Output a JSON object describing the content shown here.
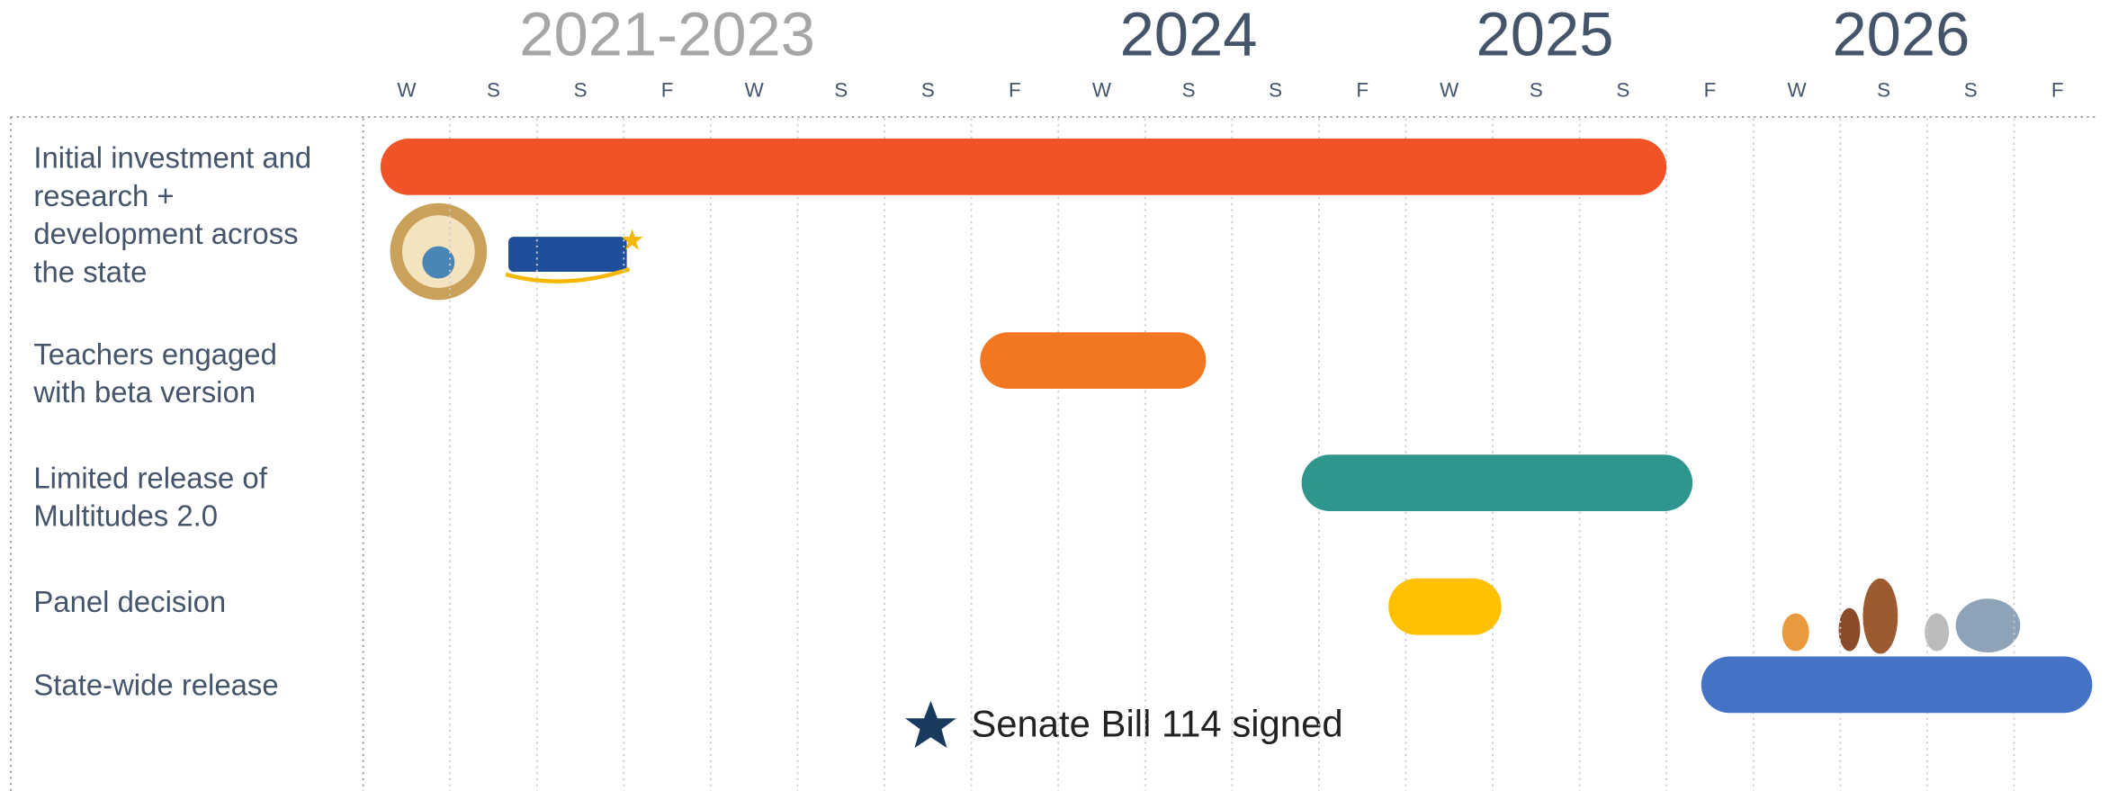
{
  "chart_data": {
    "type": "gantt",
    "periods": [
      {
        "label": "2021-2023",
        "start": -0.5,
        "end": 6.5,
        "color": "#a6a6a6"
      },
      {
        "label": "2024",
        "start": 8.3,
        "end": 9.7,
        "color": "#44546a"
      },
      {
        "label": "2025",
        "start": 12.4,
        "end": 13.8,
        "color": "#44546a"
      },
      {
        "label": "2026",
        "start": 16.5,
        "end": 17.9,
        "color": "#44546a"
      }
    ],
    "xlim": [
      -0.5,
      19.5
    ],
    "xticks": [
      {
        "value": 0,
        "label": "W"
      },
      {
        "value": 1,
        "label": "S"
      },
      {
        "value": 2,
        "label": "S"
      },
      {
        "value": 3,
        "label": "F"
      },
      {
        "value": 4,
        "label": "W"
      },
      {
        "value": 5,
        "label": "S"
      },
      {
        "value": 6,
        "label": "S"
      },
      {
        "value": 7,
        "label": "F"
      },
      {
        "value": 8,
        "label": "W"
      },
      {
        "value": 9,
        "label": "S"
      },
      {
        "value": 10,
        "label": "S"
      },
      {
        "value": 11,
        "label": "F"
      },
      {
        "value": 12,
        "label": "W"
      },
      {
        "value": 13,
        "label": "S"
      },
      {
        "value": 14,
        "label": "S"
      },
      {
        "value": 15,
        "label": "F"
      },
      {
        "value": 16,
        "label": "W"
      },
      {
        "value": 17,
        "label": "S"
      },
      {
        "value": 18,
        "label": "S"
      },
      {
        "value": 19,
        "label": "F"
      }
    ],
    "tasks": [
      {
        "label": [
          "Initial investment and",
          "research +",
          "development across",
          "the state"
        ],
        "start": -0.3,
        "end": 14.5,
        "color": "#ef5326"
      },
      {
        "label": [
          "Teachers engaged",
          "with beta version"
        ],
        "start": 6.6,
        "end": 9.2,
        "color": "#f37721"
      },
      {
        "label": [
          "Limited release of",
          "Multitudes 2.0"
        ],
        "start": 10.3,
        "end": 14.8,
        "color": "#2e968c"
      },
      {
        "label": [
          "Panel decision"
        ],
        "start": 11.3,
        "end": 12.6,
        "color": "#ffc000"
      },
      {
        "label": [
          "State-wide release"
        ],
        "start": 14.9,
        "end": 19.4,
        "color": "#4472c4"
      }
    ],
    "annotation": "Senate Bill 114 signed"
  }
}
